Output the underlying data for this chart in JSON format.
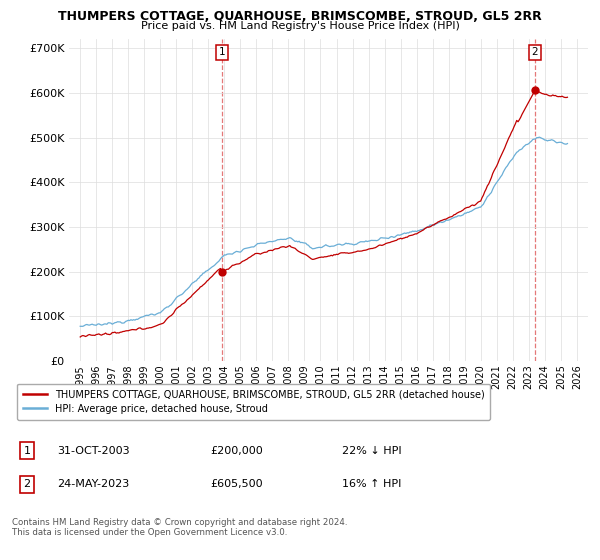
{
  "title": "THUMPERS COTTAGE, QUARHOUSE, BRIMSCOMBE, STROUD, GL5 2RR",
  "subtitle": "Price paid vs. HM Land Registry's House Price Index (HPI)",
  "ylim": [
    0,
    720000
  ],
  "yticks": [
    0,
    100000,
    200000,
    300000,
    400000,
    500000,
    600000,
    700000
  ],
  "ytick_labels": [
    "£0",
    "£100K",
    "£200K",
    "£300K",
    "£400K",
    "£500K",
    "£600K",
    "£700K"
  ],
  "sale1_date": 2003.83,
  "sale1_price": 200000,
  "sale2_date": 2023.39,
  "sale2_price": 605500,
  "hpi_color": "#6aaed6",
  "price_color": "#c00000",
  "vline_color": "#e06060",
  "legend_label1": "THUMPERS COTTAGE, QUARHOUSE, BRIMSCOMBE, STROUD, GL5 2RR (detached house)",
  "legend_label2": "HPI: Average price, detached house, Stroud",
  "annotation1_label": "1",
  "annotation1_text": "31-OCT-2003",
  "annotation1_price": "£200,000",
  "annotation1_pct": "22% ↓ HPI",
  "annotation2_label": "2",
  "annotation2_text": "24-MAY-2023",
  "annotation2_price": "£605,500",
  "annotation2_pct": "16% ↑ HPI",
  "footer": "Contains HM Land Registry data © Crown copyright and database right 2024.\nThis data is licensed under the Open Government Licence v3.0.",
  "background_color": "#ffffff",
  "grid_color": "#dddddd"
}
